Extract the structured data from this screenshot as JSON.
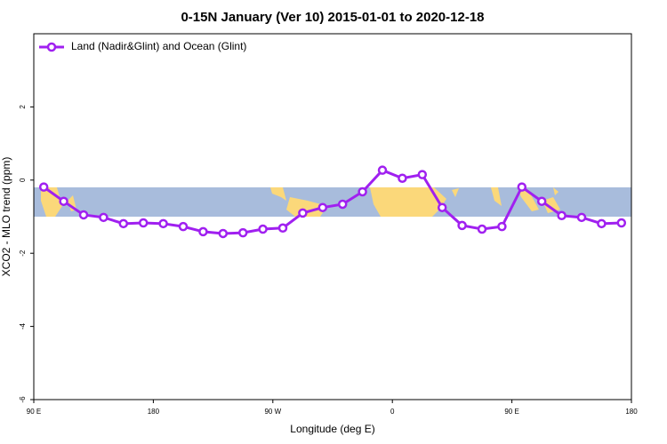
{
  "chart_data": {
    "type": "line",
    "title": "0-15N January (Ver 10)   2015-01-01 to 2020-12-18",
    "x_label": "Longitude (deg E)",
    "y_label": "XCO2 - MLO trend (ppm)",
    "legend_position": "top-left",
    "xlim": [
      90,
      540
    ],
    "xticks": [
      {
        "value": 90,
        "label": "90 E"
      },
      180,
      {
        "value": 270,
        "label": "90 W"
      },
      {
        "value": 360,
        "label": "0"
      },
      {
        "value": 450,
        "label": "90 E"
      },
      {
        "value": 540,
        "label": "180"
      }
    ],
    "ylim": [
      -6,
      4
    ],
    "yticks": [
      -6,
      -4,
      -2,
      0,
      2
    ],
    "x": [
      97.5,
      112.5,
      127.5,
      142.5,
      157.5,
      172.5,
      187.5,
      202.5,
      217.5,
      232.5,
      247.5,
      262.5,
      277.5,
      292.5,
      307.5,
      322.5,
      337.5,
      352.5,
      367.5,
      382.5,
      397.5,
      412.5,
      427.5,
      442.5,
      457.5,
      472.5,
      487.5,
      502.5,
      517.5,
      532.5
    ],
    "series": [
      {
        "name": "Land (Nadir&Glint) and Ocean (Glint)",
        "color": "#a020f0",
        "values": [
          -0.19,
          -0.58,
          -0.95,
          -1.02,
          -1.19,
          -1.17,
          -1.19,
          -1.27,
          -1.41,
          -1.46,
          -1.44,
          -1.34,
          -1.31,
          -0.9,
          -0.75,
          -0.66,
          -0.32,
          0.27,
          0.05,
          0.15,
          -0.75,
          -1.24,
          -1.34,
          -1.27,
          -0.19,
          -0.58,
          -0.97,
          -1.02,
          -1.19,
          -1.17
        ]
      }
    ]
  }
}
